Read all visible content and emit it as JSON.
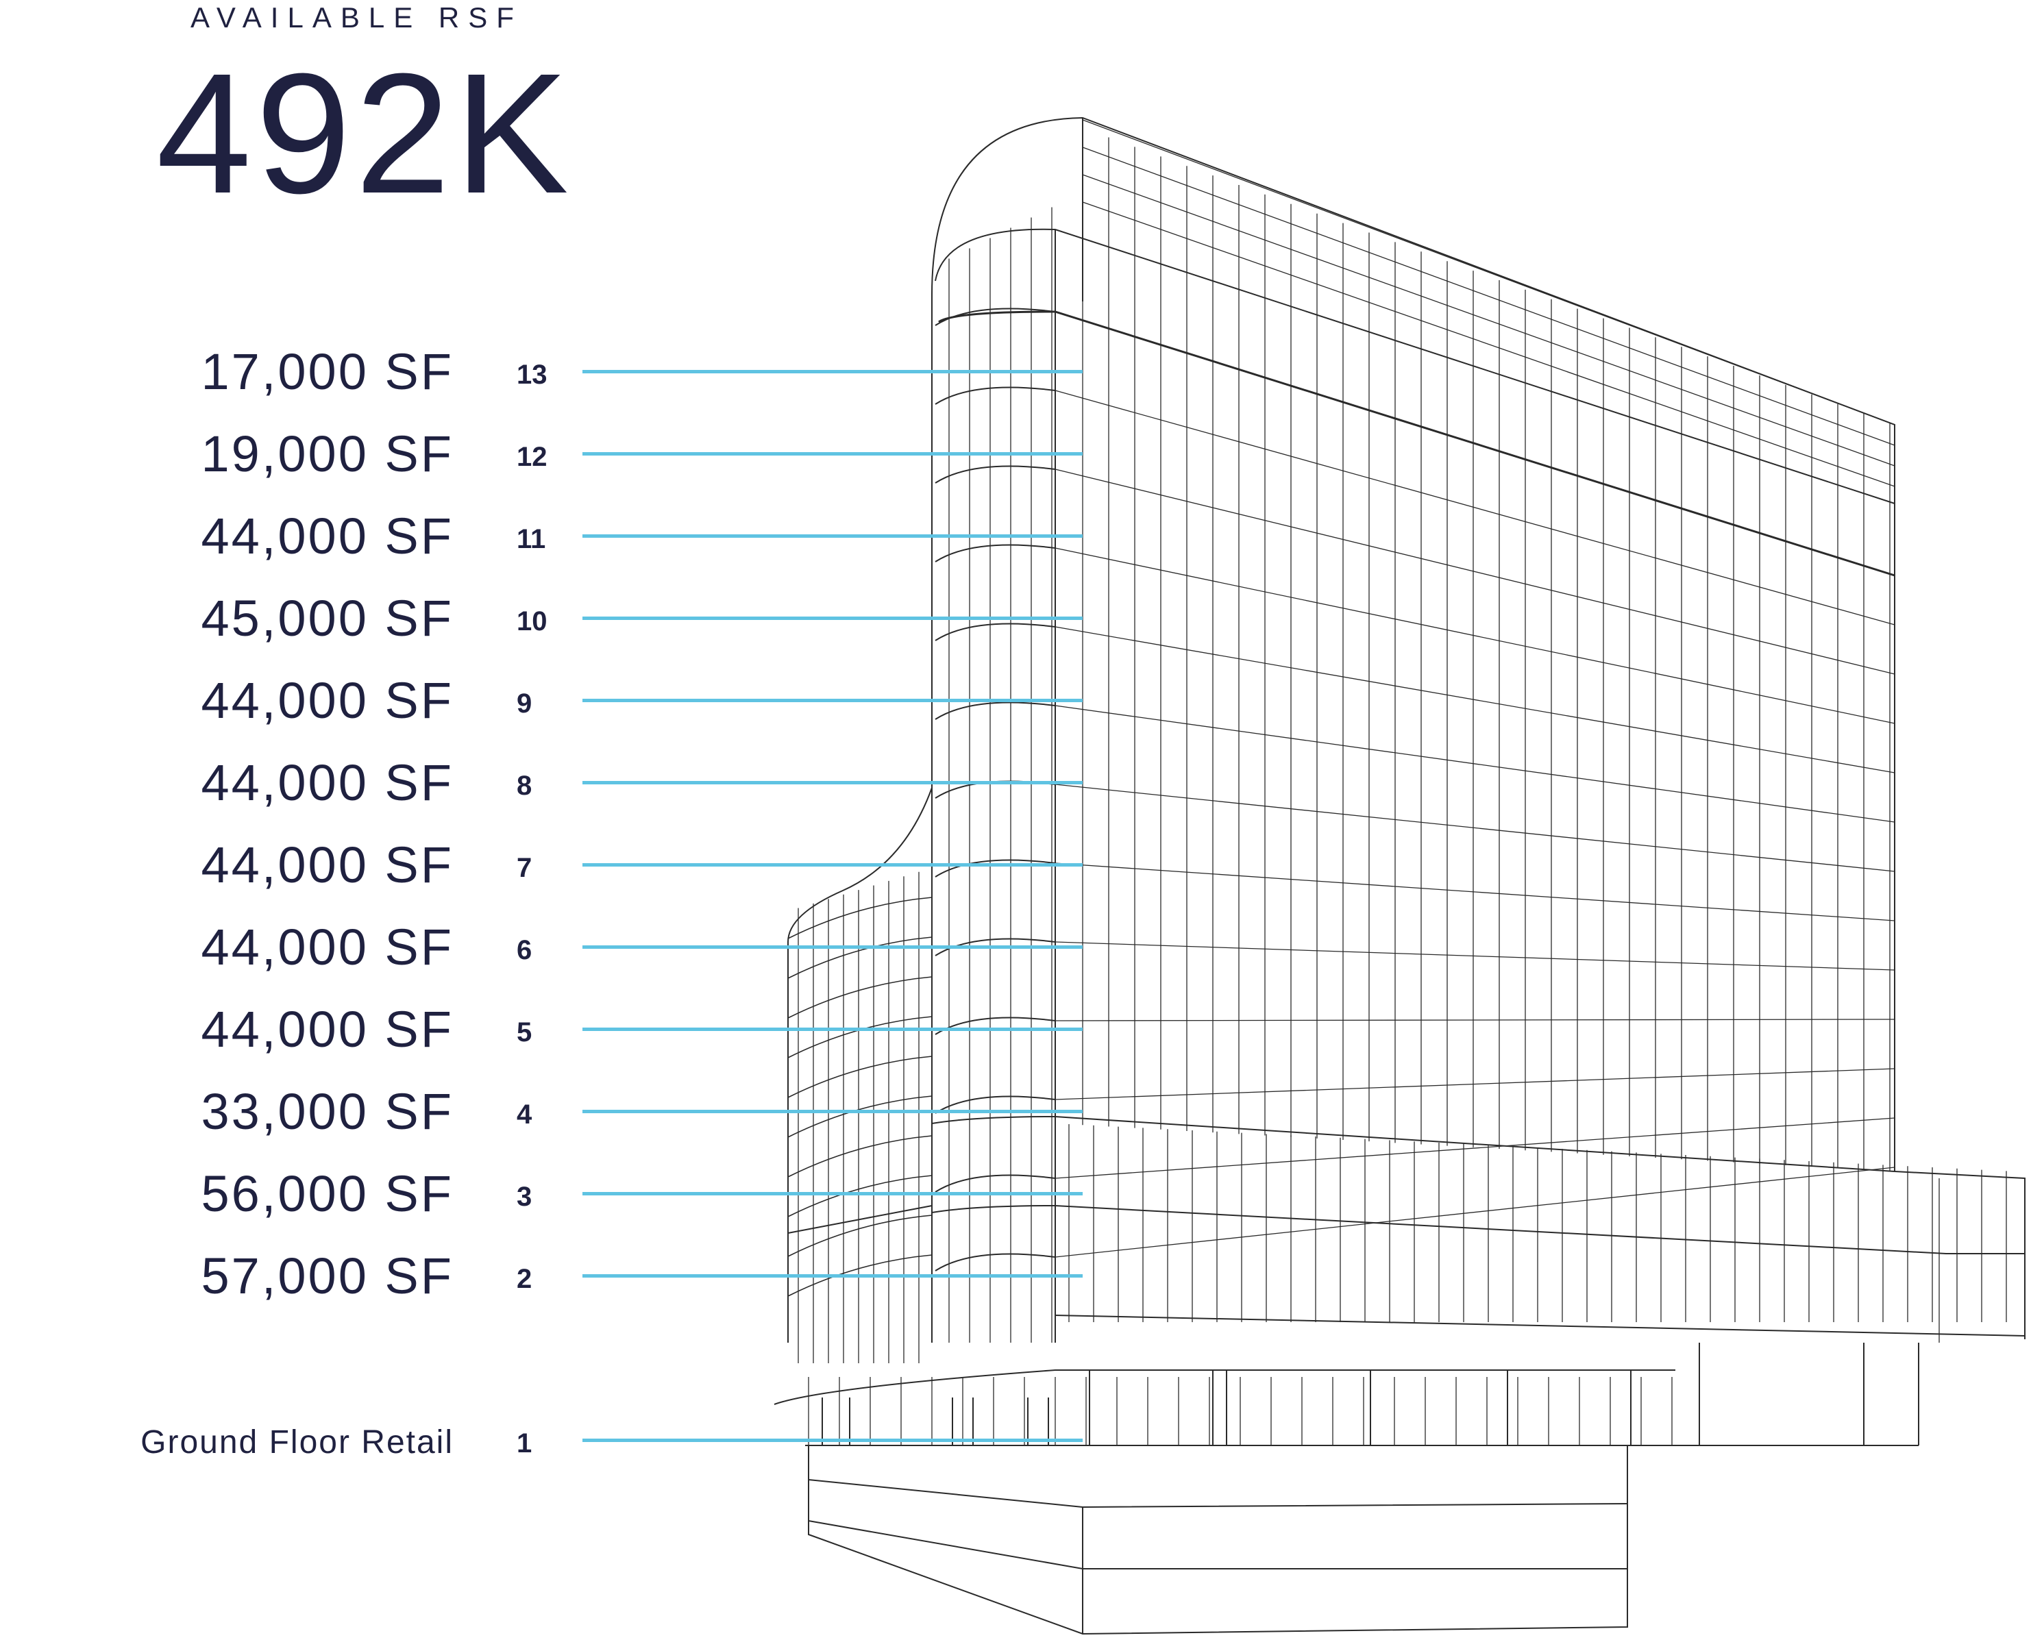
{
  "header": {
    "label": "AVAILABLE RSF",
    "total": "492K"
  },
  "floors": [
    {
      "number": "13",
      "area": "17,000 SF"
    },
    {
      "number": "12",
      "area": "19,000 SF"
    },
    {
      "number": "11",
      "area": "44,000 SF"
    },
    {
      "number": "10",
      "area": "45,000 SF"
    },
    {
      "number": "9",
      "area": "44,000 SF"
    },
    {
      "number": "8",
      "area": "44,000 SF"
    },
    {
      "number": "7",
      "area": "44,000 SF"
    },
    {
      "number": "6",
      "area": "44,000 SF"
    },
    {
      "number": "5",
      "area": "44,000 SF"
    },
    {
      "number": "4",
      "area": "33,000 SF"
    },
    {
      "number": "3",
      "area": "56,000 SF"
    },
    {
      "number": "2",
      "area": "57,000 SF"
    },
    {
      "number": "1",
      "area": "Ground Floor Retail"
    }
  ],
  "colors": {
    "text": "#1f2140",
    "leader_line": "#5fc3e2",
    "building_line": "#2a2a2a"
  }
}
